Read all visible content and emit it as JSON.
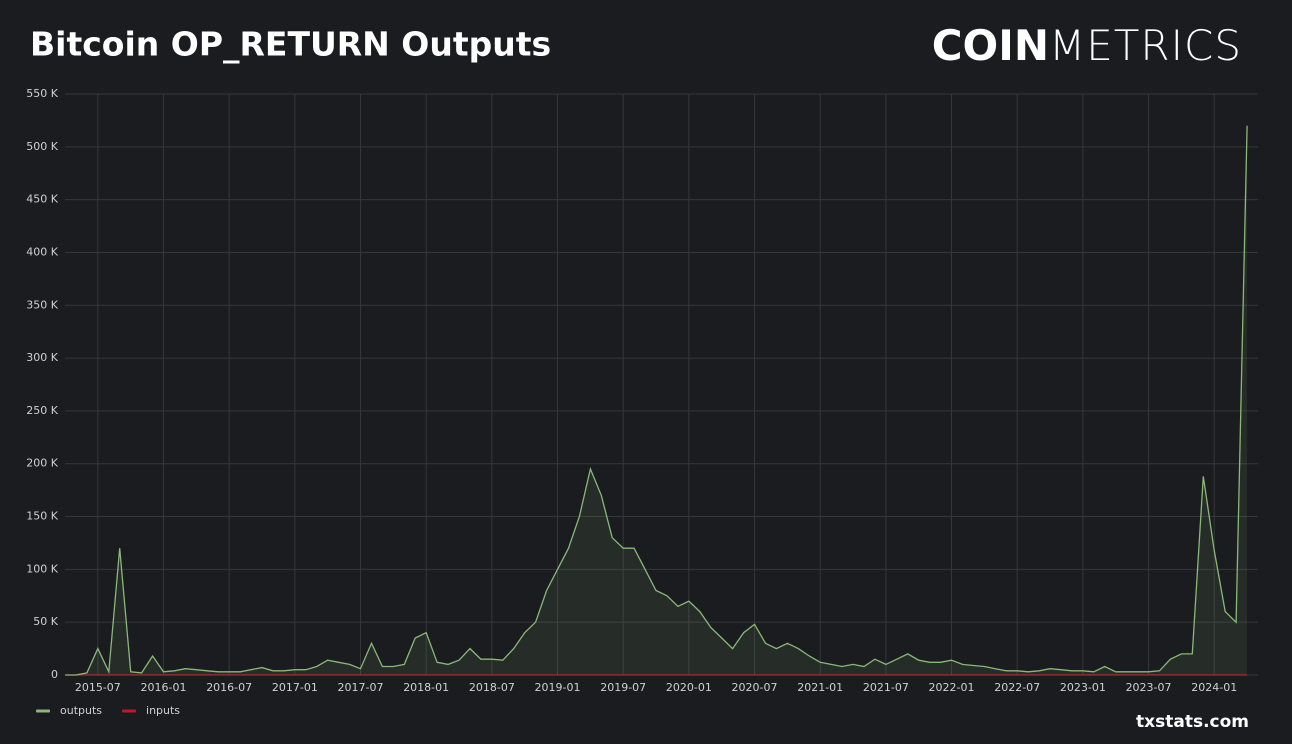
{
  "chart_data": {
    "type": "line",
    "title": "Bitcoin OP_RETURN Outputs",
    "logo": [
      "COIN",
      "METRICS"
    ],
    "source": "txstats.com",
    "x": [
      "2015-04",
      "2015-05",
      "2015-06",
      "2015-07",
      "2015-08",
      "2015-09",
      "2015-10",
      "2015-11",
      "2015-12",
      "2016-01",
      "2016-02",
      "2016-03",
      "2016-04",
      "2016-05",
      "2016-06",
      "2016-07",
      "2016-08",
      "2016-09",
      "2016-10",
      "2016-11",
      "2016-12",
      "2017-01",
      "2017-02",
      "2017-03",
      "2017-04",
      "2017-05",
      "2017-06",
      "2017-07",
      "2017-08",
      "2017-09",
      "2017-10",
      "2017-11",
      "2017-12",
      "2018-01",
      "2018-02",
      "2018-03",
      "2018-04",
      "2018-05",
      "2018-06",
      "2018-07",
      "2018-08",
      "2018-09",
      "2018-10",
      "2018-11",
      "2018-12",
      "2019-01",
      "2019-02",
      "2019-03",
      "2019-04",
      "2019-05",
      "2019-06",
      "2019-07",
      "2019-08",
      "2019-09",
      "2019-10",
      "2019-11",
      "2019-12",
      "2020-01",
      "2020-02",
      "2020-03",
      "2020-04",
      "2020-05",
      "2020-06",
      "2020-07",
      "2020-08",
      "2020-09",
      "2020-10",
      "2020-11",
      "2020-12",
      "2021-01",
      "2021-02",
      "2021-03",
      "2021-04",
      "2021-05",
      "2021-06",
      "2021-07",
      "2021-08",
      "2021-09",
      "2021-10",
      "2021-11",
      "2021-12",
      "2022-01",
      "2022-02",
      "2022-03",
      "2022-04",
      "2022-05",
      "2022-06",
      "2022-07",
      "2022-08",
      "2022-09",
      "2022-10",
      "2022-11",
      "2022-12",
      "2023-01",
      "2023-02",
      "2023-03",
      "2023-04",
      "2023-05",
      "2023-06",
      "2023-07",
      "2023-08",
      "2023-09",
      "2023-10",
      "2023-11",
      "2023-12",
      "2024-01",
      "2024-02",
      "2024-03",
      "2024-04"
    ],
    "series": [
      {
        "name": "outputs",
        "color": "#8ab878",
        "values": [
          0,
          0,
          2000,
          25000,
          3000,
          120000,
          3000,
          2000,
          18000,
          3000,
          4000,
          6000,
          5000,
          4000,
          3000,
          3000,
          3000,
          5000,
          7000,
          4000,
          4000,
          5000,
          5000,
          8000,
          14000,
          12000,
          10000,
          6000,
          30000,
          8000,
          8000,
          10000,
          35000,
          40000,
          12000,
          10000,
          14000,
          25000,
          15000,
          15000,
          14000,
          25000,
          40000,
          50000,
          80000,
          100000,
          120000,
          150000,
          195000,
          170000,
          130000,
          120000,
          120000,
          100000,
          80000,
          75000,
          65000,
          70000,
          60000,
          45000,
          35000,
          25000,
          40000,
          48000,
          30000,
          25000,
          30000,
          25000,
          18000,
          12000,
          10000,
          8000,
          10000,
          8000,
          15000,
          10000,
          15000,
          20000,
          14000,
          12000,
          12000,
          14000,
          10000,
          9000,
          8000,
          6000,
          4000,
          4000,
          3000,
          4000,
          6000,
          5000,
          4000,
          4000,
          3000,
          8000,
          3000,
          3000,
          3000,
          3000,
          4000,
          15000,
          20000,
          20000,
          188000,
          118000,
          60000,
          50000,
          520000
        ]
      },
      {
        "name": "inputs",
        "color": "#c4162a",
        "values": [
          0,
          0,
          0,
          0,
          0,
          0,
          0,
          0,
          0,
          0,
          0,
          0,
          0,
          0,
          0,
          0,
          0,
          0,
          0,
          0,
          0,
          0,
          0,
          0,
          0,
          0,
          0,
          0,
          0,
          0,
          0,
          0,
          0,
          0,
          0,
          0,
          0,
          0,
          0,
          0,
          0,
          0,
          0,
          0,
          0,
          0,
          0,
          0,
          0,
          0,
          0,
          0,
          0,
          0,
          0,
          0,
          0,
          0,
          0,
          0,
          0,
          0,
          0,
          0,
          0,
          0,
          0,
          0,
          0,
          0,
          0,
          0,
          0,
          0,
          0,
          0,
          0,
          0,
          0,
          0,
          0,
          0,
          0,
          0,
          0,
          0,
          0,
          0,
          0,
          0,
          0,
          0,
          0,
          0,
          0,
          0,
          0,
          0,
          0,
          0,
          0,
          0,
          0,
          0,
          0,
          0,
          0,
          0,
          0
        ]
      }
    ],
    "xlim": [
      "2015-04",
      "2024-05"
    ],
    "xticks": [
      "2015-07",
      "2016-01",
      "2016-07",
      "2017-01",
      "2017-07",
      "2018-01",
      "2018-07",
      "2019-01",
      "2019-07",
      "2020-01",
      "2020-07",
      "2021-01",
      "2021-07",
      "2022-01",
      "2022-07",
      "2023-01",
      "2023-07",
      "2024-01"
    ],
    "ylim": [
      0,
      550000
    ],
    "yticks": [
      0,
      {
        "value": 50000,
        "label": "50 K"
      },
      {
        "value": 100000,
        "label": "100 K"
      },
      {
        "value": 150000,
        "label": "150 K"
      },
      {
        "value": 200000,
        "label": "200 K"
      },
      {
        "value": 250000,
        "label": "250 K"
      },
      {
        "value": 300000,
        "label": "300 K"
      },
      {
        "value": 350000,
        "label": "350 K"
      },
      {
        "value": 400000,
        "label": "400 K"
      },
      {
        "value": 450000,
        "label": "450 K"
      },
      {
        "value": 500000,
        "label": "500 K"
      },
      {
        "value": 550000,
        "label": "550 K"
      }
    ],
    "grid": true,
    "legend": "bottom-left"
  }
}
